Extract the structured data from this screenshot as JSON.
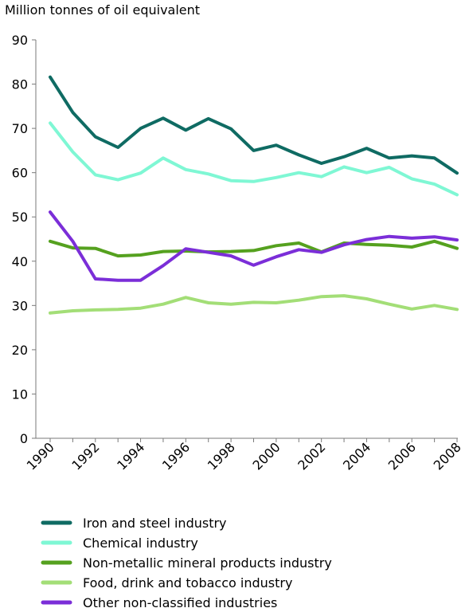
{
  "chart_data": {
    "type": "line",
    "title": "",
    "ylabel": "Million tonnes of oil equivalent",
    "xlabel": "",
    "x": [
      1990,
      1991,
      1992,
      1993,
      1994,
      1995,
      1996,
      1997,
      1998,
      1999,
      2000,
      2001,
      2002,
      2003,
      2004,
      2005,
      2006,
      2007,
      2008
    ],
    "xticks": [
      "1990",
      "1992",
      "1994",
      "1996",
      "1998",
      "2000",
      "2002",
      "2004",
      "2006",
      "2008"
    ],
    "yticks": [
      "0",
      "10",
      "20",
      "30",
      "40",
      "50",
      "60",
      "70",
      "80",
      "90"
    ],
    "ylim": [
      0,
      90
    ],
    "grid": false,
    "legend_position": "bottom",
    "series": [
      {
        "name": "Iron and steel industry",
        "color": "#0f6b63",
        "values": [
          81.6,
          73.6,
          68.1,
          65.7,
          70.0,
          72.3,
          69.6,
          72.2,
          69.9,
          65.0,
          66.2,
          64.0,
          62.1,
          63.6,
          65.5,
          63.3,
          63.8,
          63.3,
          59.9
        ]
      },
      {
        "name": "Chemical industry",
        "color": "#7ff7d4",
        "values": [
          71.2,
          64.7,
          59.5,
          58.4,
          59.9,
          63.3,
          60.7,
          59.7,
          58.2,
          58.0,
          58.9,
          60.0,
          59.1,
          61.3,
          60.0,
          61.2,
          58.6,
          57.4,
          55.0
        ]
      },
      {
        "name": "Non-metallic mineral products industry",
        "color": "#55a11f",
        "values": [
          44.5,
          43.0,
          42.9,
          41.2,
          41.4,
          42.2,
          42.3,
          42.1,
          42.2,
          42.4,
          43.5,
          44.1,
          42.1,
          44.1,
          43.8,
          43.6,
          43.2,
          44.5,
          42.9
        ]
      },
      {
        "name": "Food, drink and tobacco industry",
        "color": "#a3de77",
        "values": [
          28.3,
          28.8,
          29.0,
          29.1,
          29.4,
          30.3,
          31.8,
          30.6,
          30.3,
          30.7,
          30.6,
          31.2,
          32.0,
          32.2,
          31.5,
          30.3,
          29.2,
          30.0,
          29.1
        ]
      },
      {
        "name": "Other non-classified industries",
        "color": "#7b2ed8",
        "values": [
          51.1,
          44.5,
          36.0,
          35.7,
          35.7,
          39.0,
          42.8,
          42.0,
          41.2,
          39.1,
          41.0,
          42.6,
          42.0,
          43.7,
          44.9,
          45.6,
          45.2,
          45.5,
          44.8
        ]
      }
    ]
  }
}
